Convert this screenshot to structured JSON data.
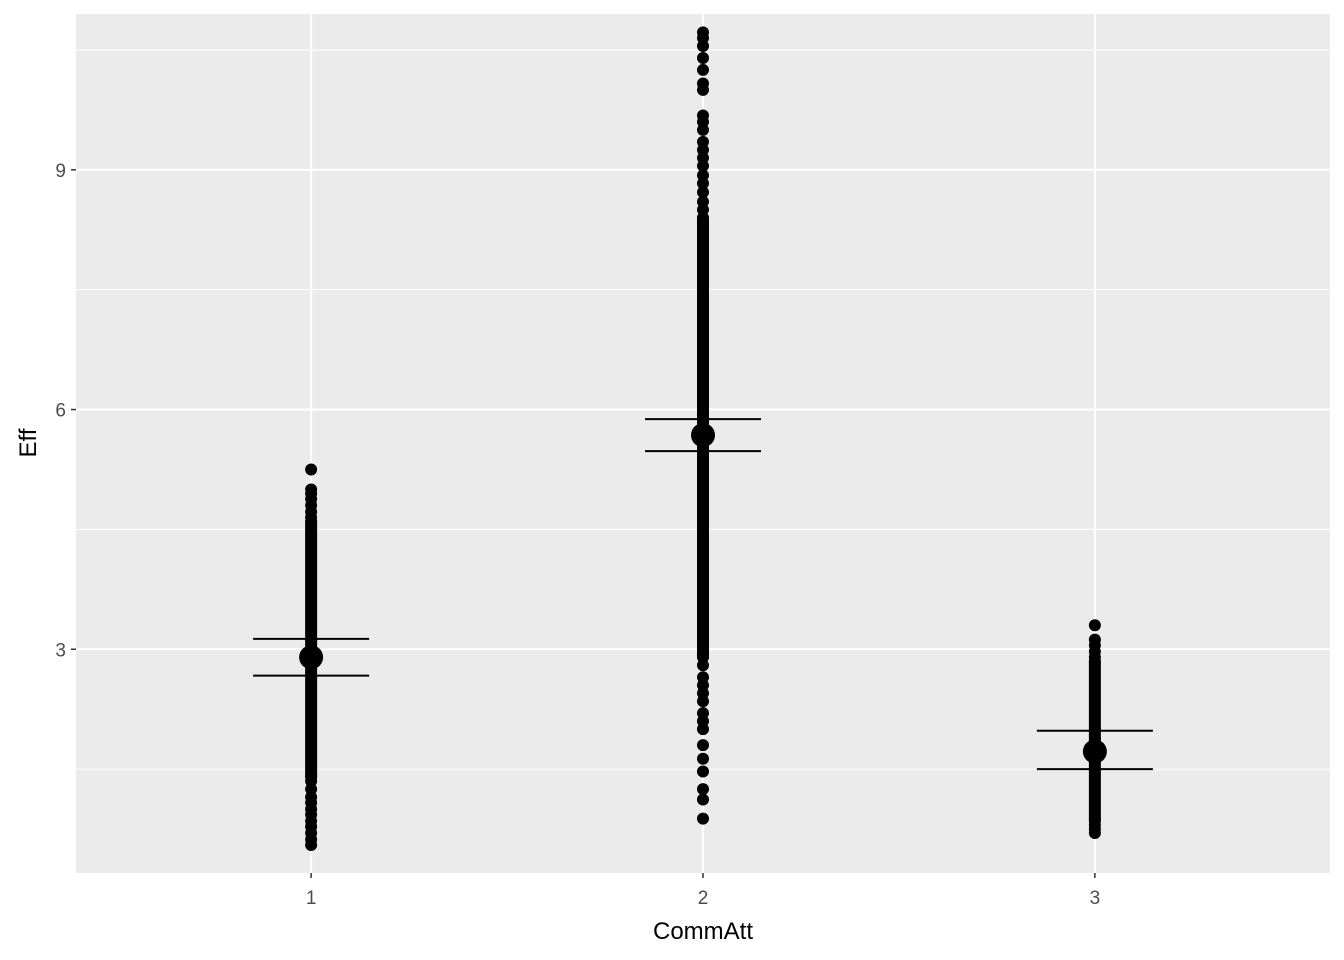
{
  "chart_data": {
    "type": "scatter",
    "title": "",
    "xlabel": "CommAtt",
    "ylabel": "Eff",
    "categories": [
      "1",
      "2",
      "3"
    ],
    "x_range": [
      0.4,
      3.6
    ],
    "ylim": [
      0.2,
      10.95
    ],
    "y_ticks": [
      3,
      6,
      9
    ],
    "y_minor_ticks": [
      1.5,
      4.5,
      7.5,
      10.5
    ],
    "grid": true,
    "legend": "none",
    "colors": {
      "panel": "#ebebeb",
      "grid": "#ffffff",
      "points": "#000000"
    },
    "groups": [
      {
        "category": "1",
        "points_min": 0.55,
        "points_max": 5.25,
        "dense_range": [
          1.4,
          4.6
        ],
        "outlier_points": [
          0.55,
          0.62,
          0.7,
          0.78,
          0.85,
          0.93,
          1.0,
          1.08,
          1.15,
          1.25,
          1.35,
          4.65,
          4.72,
          4.8,
          4.88,
          4.95,
          5.0,
          5.25
        ],
        "mean": 2.9,
        "ci_lower": 2.67,
        "ci_upper": 3.13
      },
      {
        "category": "2",
        "points_min": 0.88,
        "points_max": 10.72,
        "dense_range": [
          2.9,
          8.4
        ],
        "outlier_points": [
          0.88,
          1.12,
          1.25,
          1.47,
          1.63,
          1.8,
          2.0,
          2.1,
          2.2,
          2.35,
          2.45,
          2.55,
          2.65,
          2.8,
          8.5,
          8.6,
          8.72,
          8.83,
          8.93,
          9.05,
          9.15,
          9.25,
          9.35,
          9.5,
          9.6,
          9.68,
          10.0,
          10.08,
          10.25,
          10.4,
          10.55,
          10.65,
          10.72
        ],
        "mean": 5.68,
        "ci_lower": 5.48,
        "ci_upper": 5.88
      },
      {
        "category": "3",
        "points_min": 0.7,
        "points_max": 3.3,
        "dense_range": [
          0.85,
          2.85
        ],
        "outlier_points": [
          0.7,
          0.75,
          0.8,
          2.9,
          2.97,
          3.05,
          3.12,
          3.3
        ],
        "mean": 1.72,
        "ci_lower": 1.5,
        "ci_upper": 1.98
      }
    ]
  }
}
